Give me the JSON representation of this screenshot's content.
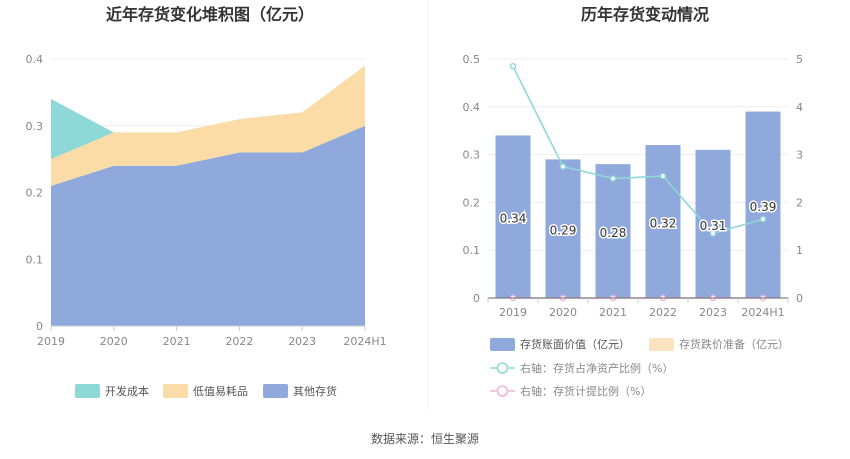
{
  "source_text": "数据来源：恒生聚源",
  "chart_data": [
    {
      "type": "area",
      "stacked": true,
      "title": "近年存货变化堆积图（亿元）",
      "categories": [
        "2019",
        "2020",
        "2021",
        "2022",
        "2023",
        "2024H1"
      ],
      "ylim": [
        0,
        0.4
      ],
      "yticks": [
        "0",
        "0.1",
        "0.2",
        "0.3",
        "0.4"
      ],
      "grid": true,
      "legend_position": "bottom",
      "series": [
        {
          "name": "其他存货",
          "values": [
            0.21,
            0.24,
            0.24,
            0.26,
            0.26,
            0.3
          ],
          "color": "#8fa9dc"
        },
        {
          "name": "低值易耗品",
          "values": [
            0.04,
            0.05,
            0.05,
            0.05,
            0.06,
            0.09
          ],
          "color": "#fbdca6"
        },
        {
          "name": "开发成本",
          "values": [
            0.09,
            0.0,
            0.0,
            0.0,
            0.0,
            0.0
          ],
          "color": "#8fd8d8"
        }
      ],
      "legend_order": [
        "开发成本",
        "低值易耗品",
        "其他存货"
      ]
    },
    {
      "type": "bar",
      "title": "历年存货变动情况",
      "categories": [
        "2019",
        "2020",
        "2021",
        "2022",
        "2023",
        "2024H1"
      ],
      "ylim": [
        0,
        0.5
      ],
      "yticks": [
        "0",
        "0.1",
        "0.2",
        "0.3",
        "0.4",
        "0.5"
      ],
      "y2lim": [
        0,
        5
      ],
      "y2ticks": [
        "0",
        "1",
        "2",
        "3",
        "4",
        "5"
      ],
      "grid": true,
      "legend_position": "bottom",
      "series": [
        {
          "name": "存货账面价值（亿元）",
          "kind": "bar",
          "axis": "left",
          "values": [
            0.34,
            0.29,
            0.28,
            0.32,
            0.31,
            0.39
          ],
          "labels": [
            "0.34",
            "0.29",
            "0.28",
            "0.32",
            "0.31",
            "0.39"
          ],
          "color": "#8fa9dc"
        },
        {
          "name": "存货跌价准备（亿元）",
          "kind": "bar",
          "axis": "left",
          "values": [
            0,
            0,
            0,
            0,
            0,
            0
          ],
          "color": "#fbe3bf"
        },
        {
          "name": "右轴：存货占净资产比例（%）",
          "kind": "line",
          "axis": "right",
          "values": [
            4.85,
            2.75,
            2.5,
            2.55,
            1.35,
            1.65
          ],
          "color": "#8fd8d8"
        },
        {
          "name": "右轴：存货计提比例（%）",
          "kind": "line",
          "axis": "right",
          "values": [
            0,
            0,
            0,
            0,
            0,
            0
          ],
          "color": "#f0b6d8"
        }
      ]
    }
  ]
}
